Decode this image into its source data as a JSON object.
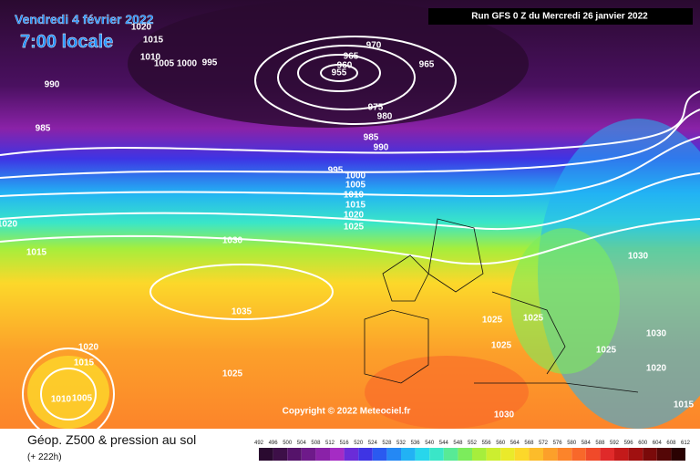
{
  "header": {
    "date": "Vendredi 4 février 2022",
    "time": "7:00 locale",
    "run": "Run GFS 0 Z du Mercredi 26 janvier 2022"
  },
  "copyright": "Copyright © 2022 Meteociel.fr",
  "footer": {
    "title": "Géop. Z500 & pression au sol",
    "lead": "(+ 222h)"
  },
  "colorbar": {
    "labels": [
      492,
      496,
      500,
      504,
      508,
      512,
      516,
      520,
      524,
      528,
      532,
      536,
      540,
      544,
      548,
      552,
      556,
      560,
      564,
      568,
      572,
      576,
      580,
      584,
      588,
      592,
      596,
      600,
      604,
      608,
      612
    ],
    "colors": [
      "#2a0a30",
      "#3d0f48",
      "#55136a",
      "#6e1a8a",
      "#8a22a8",
      "#a52cc4",
      "#6a2cd8",
      "#3e34e4",
      "#2a5af0",
      "#2488f4",
      "#22b2f4",
      "#28d6ec",
      "#3ae6c8",
      "#58ea96",
      "#7cec5c",
      "#a6ee3c",
      "#ccee30",
      "#eaea2a",
      "#fcd82a",
      "#fcbc2a",
      "#fca02a",
      "#fc842a",
      "#f8682a",
      "#f04a2a",
      "#e02a2a",
      "#c41a1a",
      "#a01010",
      "#7a0a0a",
      "#540606",
      "#2a0202"
    ]
  },
  "isobar_labels": [
    1020,
    1015,
    1010,
    1005,
    1000,
    995,
    990,
    985,
    970,
    965,
    960,
    955,
    965,
    975,
    980,
    985,
    990,
    995,
    1000,
    1005,
    1010,
    1015,
    1020,
    1025,
    1030,
    1015,
    1020,
    1035,
    1030,
    1025,
    1025,
    1025,
    1030,
    1025,
    1020,
    1015,
    1025,
    1020,
    1010,
    1005,
    1015,
    1030
  ]
}
